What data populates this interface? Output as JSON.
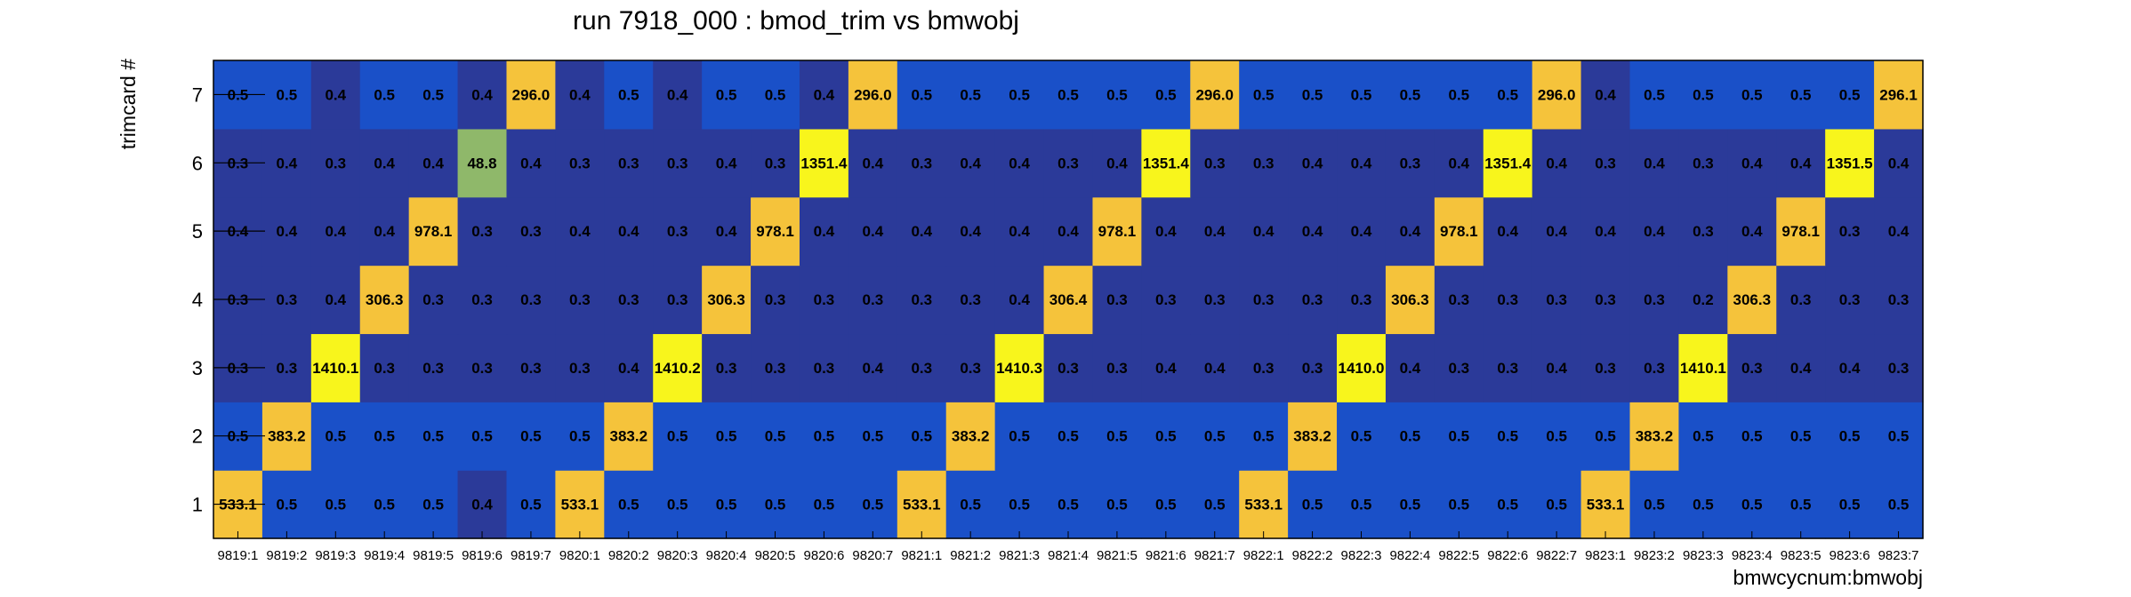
{
  "chart_data": {
    "type": "heatmap",
    "title": "run 7918_000 : bmod_trim vs bmwobj",
    "xlabel": "bmwcycnum:bmwobj",
    "ylabel": "trimcard #",
    "x_categories": [
      "9819:1",
      "9819:2",
      "9819:3",
      "9819:4",
      "9819:5",
      "9819:6",
      "9819:7",
      "9820:1",
      "9820:2",
      "9820:3",
      "9820:4",
      "9820:5",
      "9820:6",
      "9820:7",
      "9821:1",
      "9821:2",
      "9821:3",
      "9821:4",
      "9821:5",
      "9821:6",
      "9821:7",
      "9822:1",
      "9822:2",
      "9822:3",
      "9822:4",
      "9822:5",
      "9822:6",
      "9822:7",
      "9823:1",
      "9823:2",
      "9823:3",
      "9823:4",
      "9823:5",
      "9823:6",
      "9823:7"
    ],
    "y_categories": [
      "1",
      "2",
      "3",
      "4",
      "5",
      "6",
      "7"
    ],
    "values": [
      [
        "533.1",
        "0.5",
        "0.5",
        "0.5",
        "0.5",
        "0.4",
        "0.5",
        "533.1",
        "0.5",
        "0.5",
        "0.5",
        "0.5",
        "0.5",
        "0.5",
        "533.1",
        "0.5",
        "0.5",
        "0.5",
        "0.5",
        "0.5",
        "0.5",
        "533.1",
        "0.5",
        "0.5",
        "0.5",
        "0.5",
        "0.5",
        "0.5",
        "533.1",
        "0.5",
        "0.5",
        "0.5",
        "0.5",
        "0.5",
        "0.5"
      ],
      [
        "0.5",
        "383.2",
        "0.5",
        "0.5",
        "0.5",
        "0.5",
        "0.5",
        "0.5",
        "383.2",
        "0.5",
        "0.5",
        "0.5",
        "0.5",
        "0.5",
        "0.5",
        "383.2",
        "0.5",
        "0.5",
        "0.5",
        "0.5",
        "0.5",
        "0.5",
        "383.2",
        "0.5",
        "0.5",
        "0.5",
        "0.5",
        "0.5",
        "0.5",
        "383.2",
        "0.5",
        "0.5",
        "0.5",
        "0.5",
        "0.5"
      ],
      [
        "0.3",
        "0.3",
        "1410.1",
        "0.3",
        "0.3",
        "0.3",
        "0.3",
        "0.3",
        "0.4",
        "1410.2",
        "0.3",
        "0.3",
        "0.3",
        "0.4",
        "0.3",
        "0.3",
        "1410.3",
        "0.3",
        "0.3",
        "0.4",
        "0.4",
        "0.3",
        "0.3",
        "1410.0",
        "0.4",
        "0.3",
        "0.3",
        "0.4",
        "0.3",
        "0.3",
        "1410.1",
        "0.3",
        "0.4",
        "0.4",
        "0.3"
      ],
      [
        "0.3",
        "0.3",
        "0.4",
        "306.3",
        "0.3",
        "0.3",
        "0.3",
        "0.3",
        "0.3",
        "0.3",
        "306.3",
        "0.3",
        "0.3",
        "0.3",
        "0.3",
        "0.3",
        "0.4",
        "306.4",
        "0.3",
        "0.3",
        "0.3",
        "0.3",
        "0.3",
        "0.3",
        "306.3",
        "0.3",
        "0.3",
        "0.3",
        "0.3",
        "0.3",
        "0.2",
        "306.3",
        "0.3",
        "0.3",
        "0.3"
      ],
      [
        "0.4",
        "0.4",
        "0.4",
        "0.4",
        "978.1",
        "0.3",
        "0.3",
        "0.4",
        "0.4",
        "0.3",
        "0.4",
        "978.1",
        "0.4",
        "0.4",
        "0.4",
        "0.4",
        "0.4",
        "0.4",
        "978.1",
        "0.4",
        "0.4",
        "0.4",
        "0.4",
        "0.4",
        "0.4",
        "978.1",
        "0.4",
        "0.4",
        "0.4",
        "0.4",
        "0.3",
        "0.4",
        "978.1",
        "0.3",
        "0.4"
      ],
      [
        "0.3",
        "0.4",
        "0.3",
        "0.4",
        "0.4",
        "48.8",
        "0.4",
        "0.3",
        "0.3",
        "0.3",
        "0.4",
        "0.3",
        "1351.4",
        "0.4",
        "0.3",
        "0.4",
        "0.4",
        "0.3",
        "0.4",
        "1351.4",
        "0.3",
        "0.3",
        "0.4",
        "0.4",
        "0.3",
        "0.4",
        "1351.4",
        "0.4",
        "0.3",
        "0.4",
        "0.3",
        "0.4",
        "0.4",
        "1351.5",
        "0.4"
      ],
      [
        "0.5",
        "0.5",
        "0.4",
        "0.5",
        "0.5",
        "0.4",
        "296.0",
        "0.4",
        "0.5",
        "0.4",
        "0.5",
        "0.5",
        "0.4",
        "296.0",
        "0.5",
        "0.5",
        "0.5",
        "0.5",
        "0.5",
        "0.5",
        "296.0",
        "0.5",
        "0.5",
        "0.5",
        "0.5",
        "0.5",
        "0.5",
        "296.0",
        "0.4",
        "0.5",
        "0.5",
        "0.5",
        "0.5",
        "0.5",
        "296.1"
      ]
    ],
    "colors": {
      "low": "#2b3a99",
      "mid": "#1a50c8",
      "green": "#8fb86a",
      "orange": "#f5c33b",
      "yellow": "#f8f51c"
    },
    "grid": false,
    "legend": "none"
  }
}
